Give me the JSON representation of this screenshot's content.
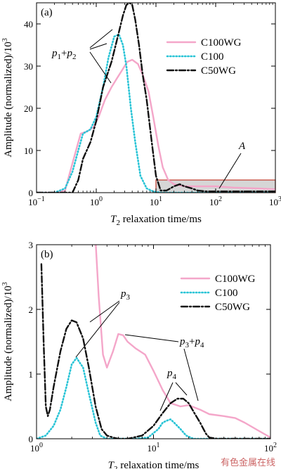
{
  "chart_data": [
    {
      "type": "line",
      "panel": "(a)",
      "xscale": "log",
      "xlim": [
        0.1,
        1000
      ],
      "ylim": [
        0,
        45
      ],
      "xlabel_sym": "T",
      "xlabel_sub": "2",
      "xlabel_rest": " relaxation time/ms",
      "ylabel": "Amplitude (normalized)/10",
      "ylabel_sup": "3",
      "xticks": [
        0.1,
        1,
        10,
        100,
        1000
      ],
      "xtick_exps": [
        "−1",
        "0",
        "1",
        "2",
        "3"
      ],
      "yticks": [
        0,
        10,
        20,
        30,
        40
      ],
      "ytick_labels": [
        "0",
        "10",
        "20",
        "30",
        "40"
      ],
      "legend_position": "right",
      "series": [
        {
          "name": "C100WG",
          "color": "#f4a6c9",
          "dash": "solid",
          "x": [
            0.1,
            0.2,
            0.3,
            0.4,
            0.55,
            0.7,
            0.9,
            1.1,
            1.4,
            1.8,
            2.2,
            2.7,
            3.3,
            4.0,
            5.0,
            6.0,
            7.5,
            9.0,
            11,
            13,
            16,
            20,
            30,
            50,
            100,
            200,
            500,
            1000
          ],
          "y": [
            0,
            0,
            0.5,
            7,
            14,
            14.5,
            15.5,
            18,
            22,
            25,
            27,
            29,
            31,
            31.5,
            30.5,
            28,
            24,
            18,
            11,
            6,
            3,
            2,
            1.5,
            1.5,
            1.5,
            1.2,
            1.0,
            0.8
          ]
        },
        {
          "name": "C100",
          "color": "#29c4d6",
          "dash": "dot",
          "x": [
            0.1,
            0.2,
            0.3,
            0.4,
            0.5,
            0.6,
            0.8,
            1.0,
            1.3,
            1.6,
            2.0,
            2.4,
            2.8,
            3.2,
            3.8,
            4.5,
            5.5,
            7.0,
            9.0,
            12,
            15,
            20,
            50,
            100,
            1000
          ],
          "y": [
            0,
            0,
            1,
            5,
            10,
            14,
            15,
            18,
            25,
            32,
            37,
            37.5,
            35,
            30,
            20,
            12,
            4,
            1,
            0.3,
            0,
            0,
            0,
            0,
            0,
            0
          ]
        },
        {
          "name": "C50WG",
          "color": "#111111",
          "dash": "dashdot",
          "x": [
            0.1,
            0.2,
            0.3,
            0.4,
            0.5,
            0.6,
            0.8,
            1.0,
            1.3,
            1.8,
            2.3,
            2.8,
            3.2,
            3.6,
            4.0,
            4.5,
            5.2,
            6.0,
            7.0,
            8.5,
            10,
            12,
            15,
            20,
            25,
            30,
            40,
            50,
            70,
            100,
            200,
            1000
          ],
          "y": [
            0,
            0,
            0,
            0,
            3,
            8,
            12,
            17,
            25,
            31,
            37,
            42,
            44.5,
            45,
            44.5,
            41,
            35,
            28,
            22,
            12,
            4,
            0.5,
            0.5,
            1.5,
            2,
            1.5,
            1,
            0.5,
            0.3,
            0.3,
            0.3,
            0.3
          ]
        }
      ],
      "annotations": [
        {
          "html_label": "p1+p2",
          "text_main": "p",
          "sub1": "1",
          "plus": "+",
          "sub2": "2"
        },
        {
          "label": "A"
        }
      ],
      "region_A": {
        "x": [
          10,
          1000
        ],
        "y": [
          0,
          3
        ]
      }
    },
    {
      "type": "line",
      "panel": "(b)",
      "xscale": "log",
      "xlim": [
        1,
        100
      ],
      "ylim": [
        0,
        3
      ],
      "xlabel_sym": "T",
      "xlabel_sub": "2",
      "xlabel_rest": " relaxation time/ms",
      "ylabel": "Amplitude (normalized)/10",
      "ylabel_sup": "3",
      "xticks": [
        1,
        10,
        100
      ],
      "xtick_exps": [
        "0",
        "1",
        "2"
      ],
      "yticks": [
        0,
        1,
        2,
        3
      ],
      "ytick_labels": [
        "0",
        "1",
        "2",
        "3"
      ],
      "legend_position": "right",
      "series": [
        {
          "name": "C100WG",
          "color": "#f4a6c9",
          "dash": "solid",
          "x": [
            3.2,
            3.4,
            3.7,
            4.0,
            4.5,
            5.0,
            5.5,
            6.0,
            7.0,
            8.5,
            10,
            12,
            14,
            17,
            20,
            25,
            30,
            40,
            50,
            60,
            80,
            100
          ],
          "y": [
            3.05,
            2.2,
            1.3,
            1.1,
            1.35,
            1.62,
            1.6,
            1.5,
            1.4,
            1.3,
            1.05,
            0.75,
            0.55,
            0.5,
            0.52,
            0.45,
            0.38,
            0.35,
            0.32,
            0.25,
            0.12,
            0.02
          ]
        },
        {
          "name": "C100",
          "color": "#29c4d6",
          "dash": "dot",
          "x": [
            1,
            1.2,
            1.4,
            1.6,
            1.8,
            2.0,
            2.2,
            2.5,
            2.8,
            3.2,
            3.5,
            4.0,
            5.0,
            7.0,
            9.0,
            11,
            12,
            13,
            14,
            15,
            17,
            19,
            22,
            30,
            100
          ],
          "y": [
            0,
            0.05,
            0.2,
            0.45,
            0.8,
            1.15,
            1.25,
            1.1,
            0.7,
            0.25,
            0.05,
            0,
            0,
            0,
            0.02,
            0.15,
            0.25,
            0.28,
            0.3,
            0.25,
            0.15,
            0.05,
            0,
            0,
            0
          ]
        },
        {
          "name": "C50WG",
          "color": "#111111",
          "dash": "dashdot",
          "x": [
            1.1,
            1.15,
            1.2,
            1.25,
            1.3,
            1.4,
            1.6,
            1.8,
            2.0,
            2.2,
            2.5,
            2.8,
            3.2,
            3.6,
            4.0,
            4.5,
            5.0,
            6.0,
            8.0,
            10,
            12,
            14,
            16,
            18,
            20,
            22,
            25,
            28,
            30,
            35,
            40,
            100
          ],
          "y": [
            2.7,
            1.5,
            0.5,
            0.35,
            0.45,
            0.8,
            1.35,
            1.7,
            1.83,
            1.8,
            1.55,
            1.1,
            0.5,
            0.15,
            0.05,
            0.02,
            0,
            0,
            0.05,
            0.2,
            0.4,
            0.55,
            0.62,
            0.62,
            0.55,
            0.42,
            0.25,
            0.08,
            0.02,
            0,
            0,
            0
          ]
        }
      ],
      "annotations": [
        {
          "text_main": "p",
          "sub1": "3"
        },
        {
          "text_main": "p",
          "sub1": "3",
          "plus": "+",
          "sub2": "4"
        },
        {
          "text_main": "p",
          "sub1": "4"
        }
      ]
    }
  ],
  "watermark": "有色金属在线"
}
